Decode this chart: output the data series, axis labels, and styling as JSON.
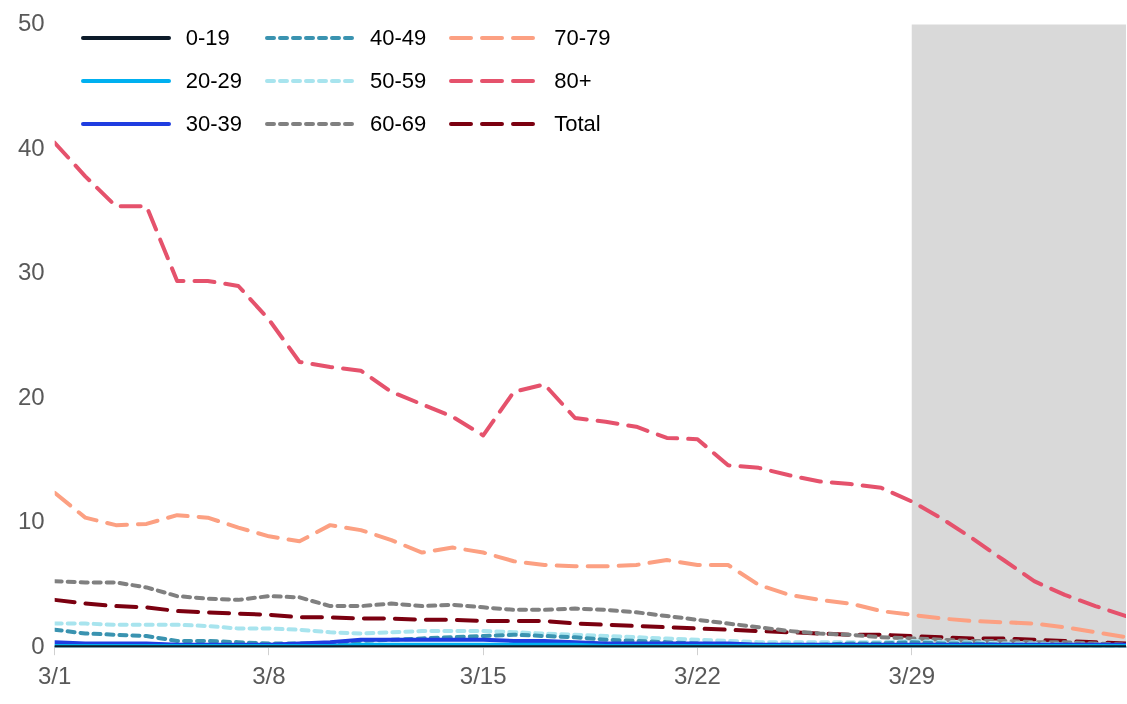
{
  "chart_data": {
    "type": "line",
    "x": [
      "--03-01",
      "--03-02",
      "--03-03",
      "--03-04",
      "--03-05",
      "--03-06",
      "--03-07",
      "--03-08",
      "--03-09",
      "--03-10",
      "--03-11",
      "--03-12",
      "--03-13",
      "--03-14",
      "--03-15",
      "--03-16",
      "--03-17",
      "--03-18",
      "--03-19",
      "--03-20",
      "--03-21",
      "--03-22",
      "--03-23",
      "--03-24",
      "--03-25",
      "--03-26",
      "--03-27",
      "--03-28",
      "--03-29",
      "--03-30",
      "--03-31",
      "--04-01",
      "--04-02",
      "--04-03",
      "--04-04",
      "--04-05"
    ],
    "series": [
      {
        "name": "0-19",
        "color": "#0d1b2a",
        "line_style": "solid",
        "values": [
          0,
          0,
          0,
          0,
          0,
          0,
          0,
          0,
          0,
          0,
          0,
          0,
          0,
          0,
          0,
          0,
          0,
          0,
          0,
          0,
          0,
          0,
          0,
          0,
          0,
          0,
          0,
          0,
          0,
          0,
          0,
          0,
          0,
          0,
          0,
          0
        ]
      },
      {
        "name": "20-29",
        "color": "#00b0f0",
        "line_style": "solid",
        "values": [
          0.1,
          0.1,
          0.1,
          0.1,
          0.1,
          0.1,
          0.1,
          0.1,
          0.1,
          0.1,
          0.2,
          0.2,
          0.2,
          0.2,
          0.2,
          0.2,
          0.2,
          0.2,
          0.1,
          0.1,
          0.1,
          0.1,
          0.1,
          0.1,
          0.1,
          0.1,
          0.1,
          0.1,
          0.1,
          0.1,
          0.1,
          0.1,
          0.1,
          0.1,
          0.1,
          0.1
        ]
      },
      {
        "name": "30-39",
        "color": "#1f3de0",
        "line_style": "solid",
        "values": [
          0.4,
          0.3,
          0.3,
          0.3,
          0.2,
          0.2,
          0.2,
          0.2,
          0.3,
          0.4,
          0.6,
          0.6,
          0.6,
          0.6,
          0.6,
          0.5,
          0.5,
          0.4,
          0.3,
          0.3,
          0.3,
          0.3,
          0.3,
          0.2,
          0.2,
          0.2,
          0.2,
          0.2,
          0.2,
          0.2,
          0.2,
          0.2,
          0.2,
          0.2,
          0.2,
          0.2
        ]
      },
      {
        "name": "40-49",
        "color": "#3a93b0",
        "line_style": "dotted",
        "values": [
          1.4,
          1.1,
          1.0,
          0.9,
          0.5,
          0.5,
          0.4,
          0.3,
          0.3,
          0.3,
          0.5,
          0.6,
          0.7,
          0.8,
          0.9,
          1.0,
          0.9,
          0.8,
          0.6,
          0.5,
          0.4,
          0.3,
          0.2,
          0.2,
          0.2,
          0.2,
          0.3,
          0.3,
          0.4,
          0.3,
          0.3,
          0.2,
          0.2,
          0.2,
          0.1,
          0.1
        ]
      },
      {
        "name": "50-59",
        "color": "#a8e4ee",
        "line_style": "dotted",
        "values": [
          1.9,
          1.9,
          1.8,
          1.8,
          1.8,
          1.7,
          1.5,
          1.5,
          1.4,
          1.2,
          1.1,
          1.2,
          1.3,
          1.3,
          1.3,
          1.2,
          1.1,
          1.0,
          0.9,
          0.8,
          0.7,
          0.6,
          0.5,
          0.4,
          0.4,
          0.4,
          0.4,
          0.4,
          0.5,
          0.4,
          0.4,
          0.3,
          0.3,
          0.2,
          0.2,
          0.1
        ]
      },
      {
        "name": "60-69",
        "color": "#808080",
        "line_style": "dotted",
        "values": [
          5.3,
          5.2,
          5.2,
          4.8,
          4.1,
          3.9,
          3.8,
          4.1,
          4.0,
          3.3,
          3.3,
          3.5,
          3.3,
          3.4,
          3.2,
          3.0,
          3.0,
          3.1,
          3.0,
          2.8,
          2.5,
          2.2,
          1.9,
          1.6,
          1.3,
          1.1,
          1.0,
          0.8,
          0.7,
          0.6,
          0.5,
          0.5,
          0.4,
          0.4,
          0.3,
          0.2
        ]
      },
      {
        "name": "70-79",
        "color": "#fca082",
        "line_style": "dashed",
        "values": [
          12.4,
          10.4,
          9.8,
          9.9,
          10.6,
          10.4,
          9.6,
          8.9,
          8.5,
          9.8,
          9.4,
          8.6,
          7.6,
          8.0,
          7.6,
          6.9,
          6.6,
          6.5,
          6.5,
          6.6,
          7.0,
          6.6,
          6.6,
          5.0,
          4.2,
          3.8,
          3.5,
          2.9,
          2.6,
          2.3,
          2.1,
          2.0,
          1.9,
          1.6,
          1.2,
          0.8
        ]
      },
      {
        "name": "80+",
        "color": "#e5526c",
        "line_style": "dashed",
        "values": [
          40.5,
          37.8,
          35.4,
          35.4,
          29.4,
          29.4,
          29.0,
          26.3,
          22.9,
          22.5,
          22.2,
          20.5,
          19.5,
          18.5,
          17.0,
          20.5,
          21.1,
          18.4,
          18.1,
          17.7,
          16.8,
          16.7,
          14.6,
          14.4,
          13.8,
          13.3,
          13.1,
          12.8,
          11.7,
          10.3,
          8.7,
          7.0,
          5.3,
          4.2,
          3.3,
          2.5
        ]
      },
      {
        "name": "Total",
        "color": "#7b0010",
        "line_style": "dashed",
        "values": [
          3.8,
          3.5,
          3.3,
          3.2,
          2.9,
          2.8,
          2.7,
          2.6,
          2.4,
          2.4,
          2.3,
          2.3,
          2.2,
          2.2,
          2.1,
          2.1,
          2.1,
          1.9,
          1.8,
          1.7,
          1.6,
          1.5,
          1.4,
          1.3,
          1.2,
          1.1,
          1.0,
          1.0,
          0.9,
          0.8,
          0.7,
          0.7,
          0.6,
          0.5,
          0.4,
          0.3
        ]
      }
    ],
    "xlim": [
      "--03-01",
      "--04-05"
    ],
    "xticks": [
      {
        "value": "--03-01",
        "label": "3/1"
      },
      {
        "value": "--03-08",
        "label": "3/8"
      },
      {
        "value": "--03-15",
        "label": "3/15"
      },
      {
        "value": "--03-22",
        "label": "3/22"
      },
      {
        "value": "--03-29",
        "label": "3/29"
      }
    ],
    "ylim": [
      0,
      50
    ],
    "yticks": [
      0,
      10,
      20,
      30,
      40,
      50
    ],
    "bands": [
      {
        "axis": "x",
        "from": "--03-29",
        "to": "--04-05",
        "color": "#d9d9d9"
      }
    ],
    "grid": false,
    "legend": "top left",
    "marker": "none"
  }
}
